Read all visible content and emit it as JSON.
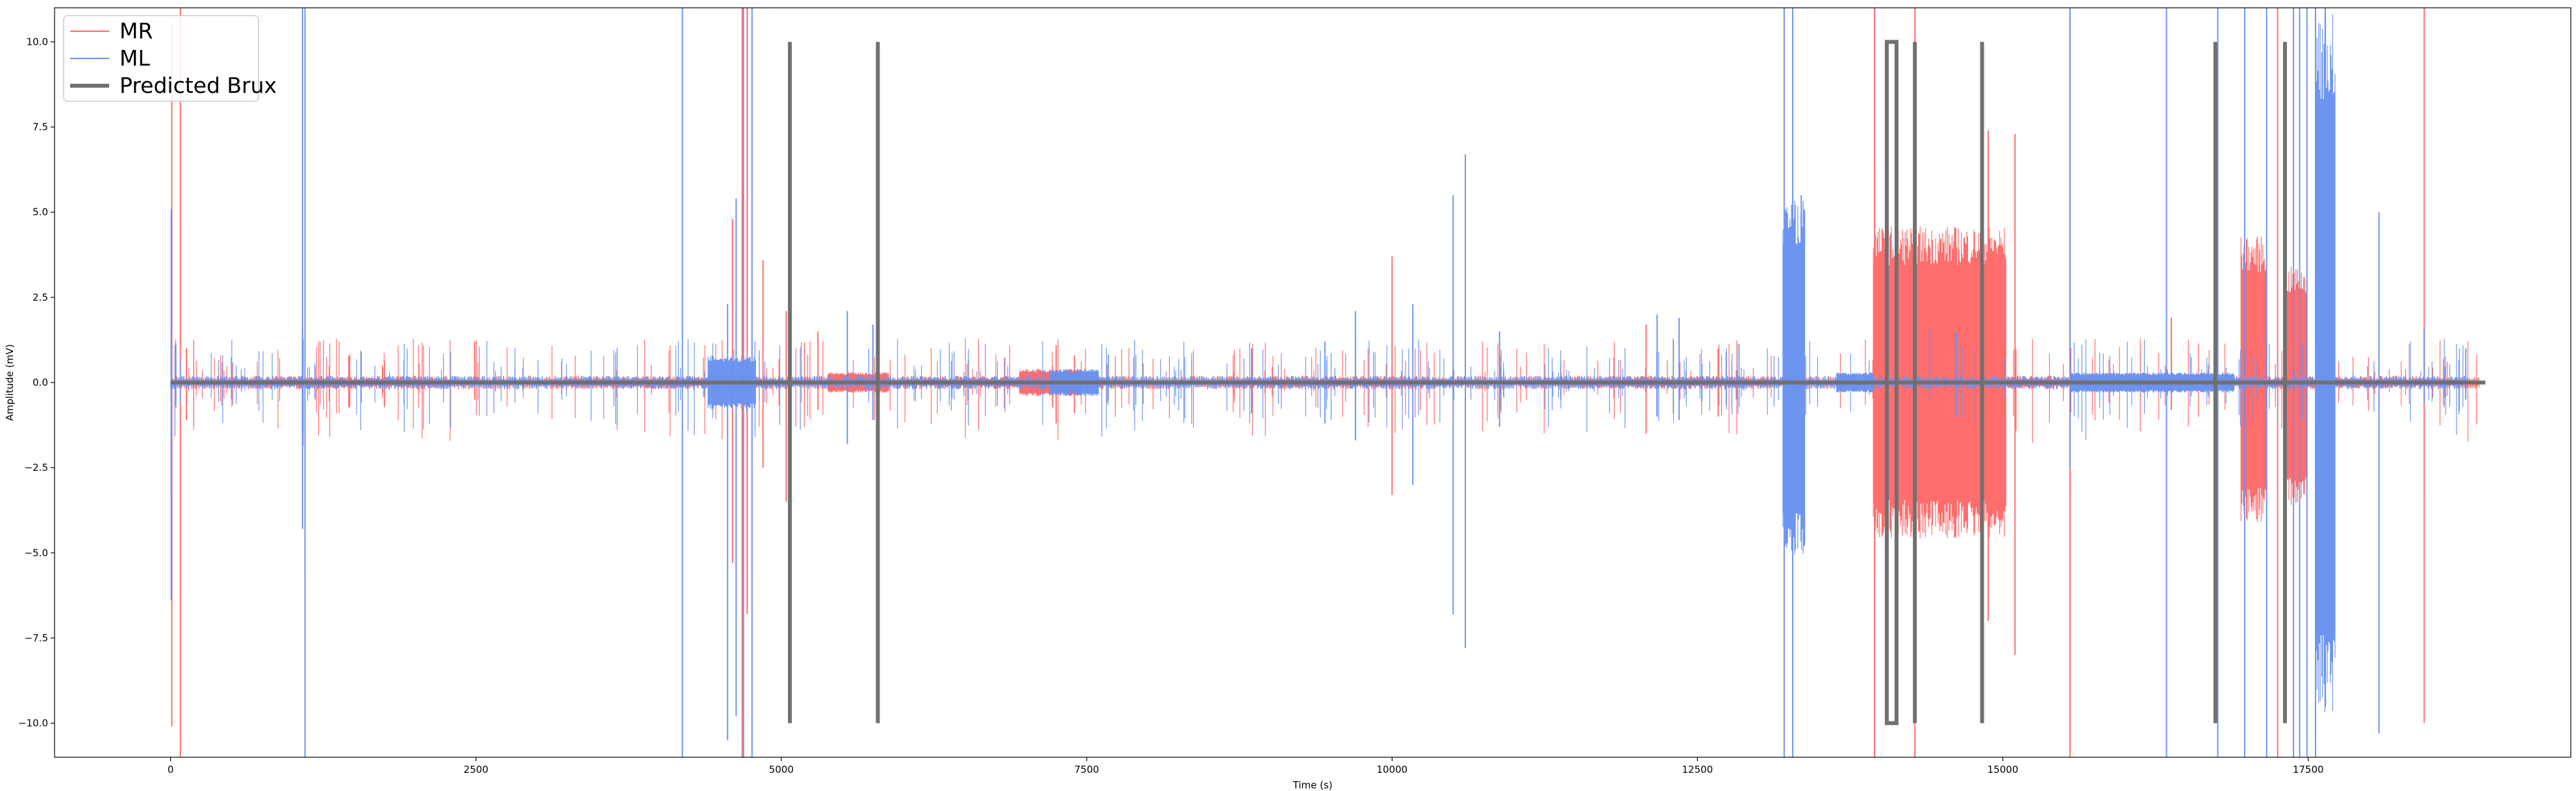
{
  "chart_data": {
    "type": "line",
    "xlabel": "Time (s)",
    "ylabel": "Amplitude (mV)",
    "xlim": [
      -950,
      19650
    ],
    "ylim": [
      -11,
      11
    ],
    "xticks": [
      0,
      2500,
      5000,
      7500,
      10000,
      12500,
      15000,
      17500
    ],
    "xtick_labels": [
      "0",
      "2500",
      "5000",
      "7500",
      "10000",
      "12500",
      "15000",
      "17500"
    ],
    "yticks": [
      -10.0,
      -7.5,
      -5.0,
      -2.5,
      0.0,
      2.5,
      5.0,
      7.5,
      10.0
    ],
    "ytick_labels": [
      "−10.0",
      "−7.5",
      "−5.0",
      "−2.5",
      "0.0",
      "2.5",
      "5.0",
      "7.5",
      "10.0"
    ],
    "grid": false,
    "legend_position": "top-left",
    "series": [
      {
        "name": "MR",
        "color": "#ff6666",
        "baseline_range": [
          0,
          18900
        ],
        "spikes": [
          [
            10,
            -10.1,
            10.5
          ],
          [
            80,
            -11,
            11
          ],
          [
            130,
            -1.1,
            1.0
          ],
          [
            1080,
            -1.5,
            1.6
          ],
          [
            1560,
            -0.6,
            0.9
          ],
          [
            2490,
            -0.5,
            1.2
          ],
          [
            4600,
            -5.3,
            4.8
          ],
          [
            4680,
            -11,
            11
          ],
          [
            4720,
            -6.8,
            11
          ],
          [
            4850,
            -2.5,
            3.6
          ],
          [
            5040,
            -3.5,
            2.1
          ],
          [
            5300,
            -0.8,
            1.5
          ],
          [
            5780,
            -3.4,
            4.5
          ],
          [
            7250,
            -1.2,
            1.1
          ],
          [
            7400,
            -0.9,
            0.8
          ],
          [
            10000,
            -3.3,
            3.7
          ],
          [
            12080,
            -1.5,
            1.7
          ],
          [
            12670,
            -1.0,
            1.0
          ],
          [
            13950,
            -11,
            11
          ],
          [
            14280,
            -11,
            11
          ],
          [
            14880,
            -7.0,
            7.4
          ],
          [
            15100,
            -8.0,
            7.3
          ],
          [
            15550,
            -11,
            11
          ],
          [
            16380,
            -0.8,
            1.9
          ],
          [
            17250,
            -11,
            11
          ],
          [
            18450,
            -10.0,
            11
          ]
        ],
        "bursts": [
          [
            13940,
            15030,
            -4.6,
            4.6
          ],
          [
            16950,
            17160,
            -4.1,
            4.3
          ],
          [
            17310,
            17490,
            -3.6,
            3.4
          ],
          [
            5380,
            5880,
            -0.3,
            0.3
          ],
          [
            6950,
            7450,
            -0.4,
            0.4
          ]
        ]
      },
      {
        "name": "ML",
        "color": "#6690f0",
        "baseline_range": [
          0,
          18800
        ],
        "spikes": [
          [
            5,
            -6.4,
            5.1
          ],
          [
            1080,
            -4.3,
            11
          ],
          [
            1100,
            -11,
            11
          ],
          [
            4190,
            -11,
            11
          ],
          [
            4560,
            -10.5,
            2.3
          ],
          [
            4630,
            -9.8,
            5.4
          ],
          [
            4690,
            -11,
            11
          ],
          [
            4760,
            -11,
            11
          ],
          [
            5540,
            -1.8,
            2.1
          ],
          [
            5750,
            -1.1,
            1.7
          ],
          [
            8850,
            -0.9,
            1.0
          ],
          [
            9450,
            -1.2,
            1.2
          ],
          [
            9700,
            -1.7,
            2.1
          ],
          [
            10170,
            -3.0,
            2.3
          ],
          [
            10500,
            -6.8,
            5.5
          ],
          [
            10600,
            -7.8,
            6.7
          ],
          [
            10880,
            -1.3,
            1.5
          ],
          [
            12170,
            -1.0,
            2.0
          ],
          [
            12350,
            -1.1,
            1.9
          ],
          [
            13210,
            -11,
            11
          ],
          [
            13280,
            -11,
            11
          ],
          [
            13350,
            -1.2,
            5.5
          ],
          [
            14400,
            -0.5,
            1.6
          ],
          [
            14620,
            -1.0,
            1.5
          ],
          [
            15550,
            -2.5,
            11
          ],
          [
            16340,
            -11,
            11
          ],
          [
            16760,
            -11,
            11
          ],
          [
            16980,
            -11,
            11
          ],
          [
            17160,
            -11,
            11
          ],
          [
            17380,
            -11,
            11
          ],
          [
            17430,
            -11,
            11
          ],
          [
            17490,
            -11,
            11
          ],
          [
            17560,
            -11,
            11
          ],
          [
            17640,
            -7.3,
            11
          ],
          [
            18080,
            -10.3,
            5.0
          ],
          [
            18450,
            -0.6,
            1.6
          ],
          [
            18790,
            -0.5,
            1.0
          ]
        ],
        "bursts": [
          [
            13200,
            13380,
            -5.1,
            5.4
          ],
          [
            4400,
            4790,
            -0.8,
            0.8
          ],
          [
            7200,
            7600,
            -0.4,
            0.4
          ],
          [
            13640,
            13940,
            -0.3,
            0.3
          ],
          [
            15560,
            16900,
            -0.3,
            0.3
          ],
          [
            17560,
            17720,
            -9.8,
            11
          ]
        ]
      },
      {
        "name": "Predicted Brux",
        "color": "#707070",
        "line_width": 6,
        "steps": [
          [
            0,
            0
          ],
          [
            5070,
            0
          ],
          [
            5070,
            10
          ],
          [
            5070,
            -10
          ],
          [
            5070,
            0
          ],
          [
            5790,
            0
          ],
          [
            5790,
            10
          ],
          [
            5790,
            -10
          ],
          [
            5790,
            0
          ],
          [
            14050,
            0
          ],
          [
            14050,
            10
          ],
          [
            14130,
            10
          ],
          [
            14130,
            -10
          ],
          [
            14050,
            -10
          ],
          [
            14050,
            0
          ],
          [
            14280,
            0
          ],
          [
            14280,
            10
          ],
          [
            14280,
            -10
          ],
          [
            14280,
            0
          ],
          [
            14830,
            0
          ],
          [
            14830,
            10
          ],
          [
            14830,
            -10
          ],
          [
            14830,
            0
          ],
          [
            16740,
            0
          ],
          [
            16740,
            10
          ],
          [
            16740,
            -10
          ],
          [
            16740,
            0
          ],
          [
            17310,
            0
          ],
          [
            17310,
            10
          ],
          [
            17310,
            -10
          ],
          [
            17310,
            0
          ],
          [
            18950,
            0
          ]
        ]
      }
    ]
  }
}
